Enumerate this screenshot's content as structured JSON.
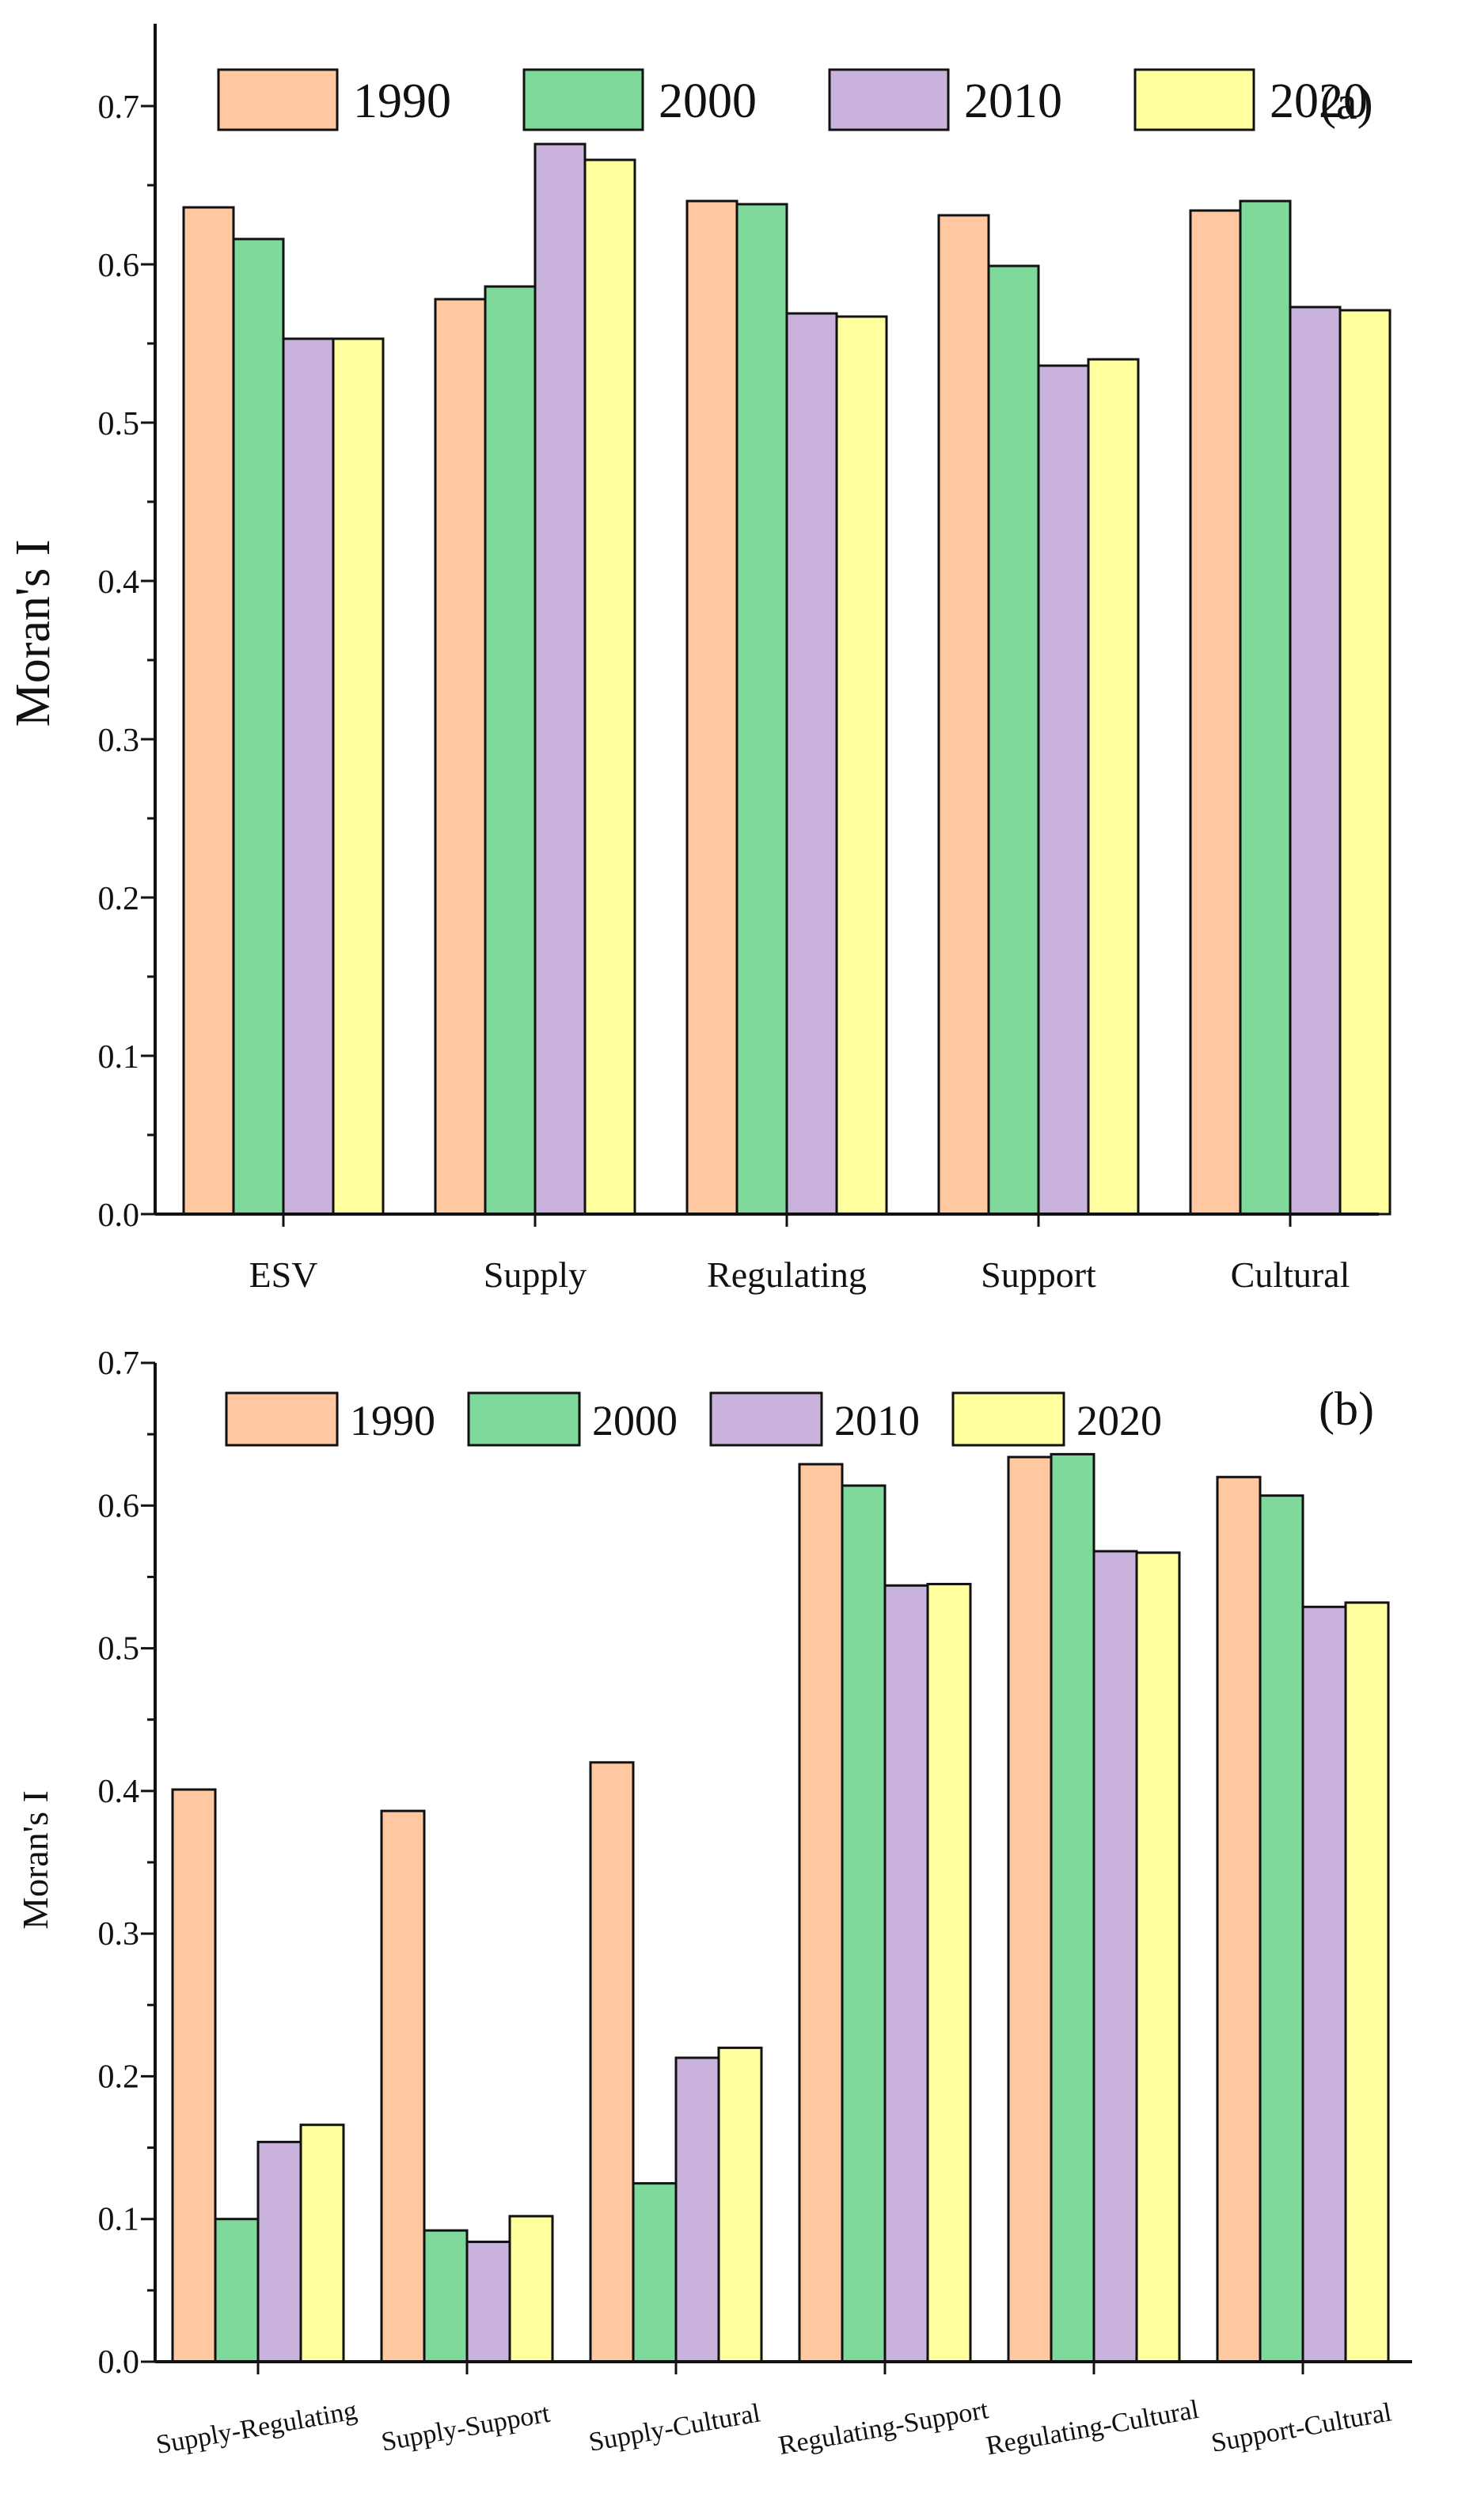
{
  "chart_data": [
    {
      "panel": "(a)",
      "type": "bar",
      "title": "",
      "xlabel": "",
      "ylabel": "Moran's I",
      "ylim": [
        0,
        0.75
      ],
      "yticks": [
        "0.0",
        "0.1",
        "0.2",
        "0.3",
        "0.4",
        "0.5",
        "0.6",
        "0.7"
      ],
      "categories": [
        "ESV",
        "Supply",
        "Regulating",
        "Support",
        "Cultural"
      ],
      "series": [
        {
          "name": "1990",
          "color": "#FFC8A0",
          "values": [
            0.636,
            0.578,
            0.64,
            0.631,
            0.634
          ]
        },
        {
          "name": "2000",
          "color": "#7FD99A",
          "values": [
            0.616,
            0.586,
            0.638,
            0.599,
            0.64
          ]
        },
        {
          "name": "2010",
          "color": "#C9B2DC",
          "values": [
            0.553,
            0.676,
            0.569,
            0.536,
            0.573
          ]
        },
        {
          "name": "2020",
          "color": "#FFFF9E",
          "values": [
            0.553,
            0.666,
            0.567,
            0.54,
            0.571
          ]
        }
      ]
    },
    {
      "panel": "(b)",
      "type": "bar",
      "title": "",
      "xlabel": "",
      "ylabel": "Moran's I",
      "ylim": [
        0,
        0.7
      ],
      "yticks": [
        "0.0",
        "0.1",
        "0.2",
        "0.3",
        "0.4",
        "0.5",
        "0.6",
        "0.7"
      ],
      "categories": [
        "Supply-Regulating",
        "Supply-Support",
        "Supply-Cultural",
        "Regulating-Support",
        "Regulating-Cultural",
        "Support-Cultural"
      ],
      "series": [
        {
          "name": "1990",
          "color": "#FFC8A0",
          "values": [
            0.401,
            0.386,
            0.42,
            0.629,
            0.634,
            0.62
          ]
        },
        {
          "name": "2000",
          "color": "#7FD99A",
          "values": [
            0.1,
            0.092,
            0.125,
            0.614,
            0.636,
            0.607
          ]
        },
        {
          "name": "2010",
          "color": "#C9B2DC",
          "values": [
            0.154,
            0.084,
            0.213,
            0.544,
            0.568,
            0.529
          ]
        },
        {
          "name": "2020",
          "color": "#FFFF9E",
          "values": [
            0.166,
            0.102,
            0.22,
            0.545,
            0.567,
            0.532
          ]
        }
      ]
    }
  ]
}
